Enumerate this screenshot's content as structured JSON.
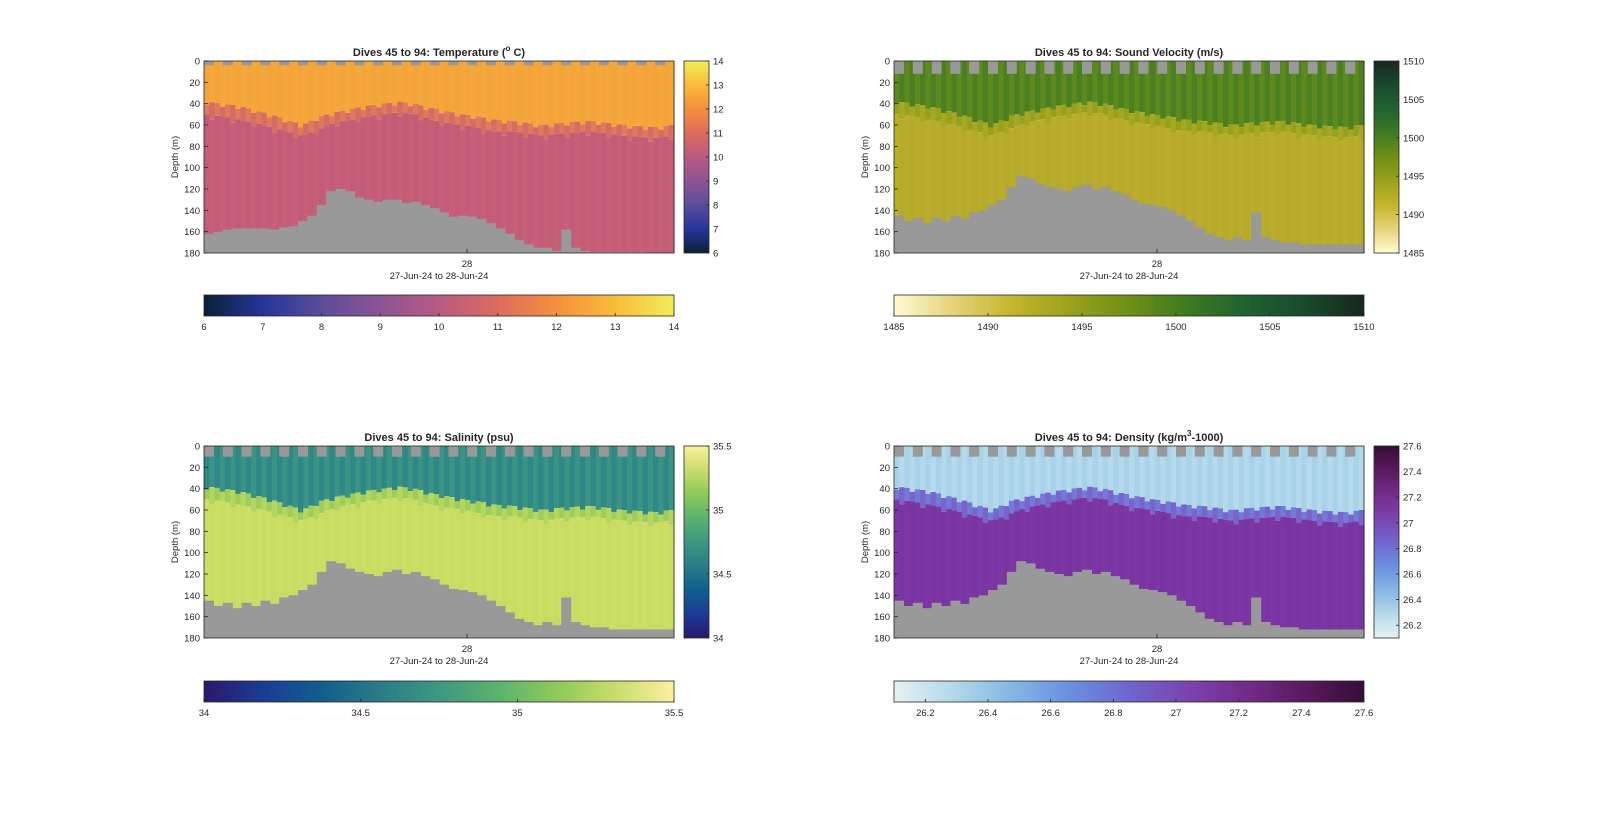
{
  "chart_data": [
    {
      "type": "heatmap",
      "title": "Dives 45 to 94: Temperature (° C)",
      "title_parts": [
        "Dives 45 to 94: Temperature (",
        "o",
        " C)"
      ],
      "ylabel": "Depth (m)",
      "xlabel": "27-Jun-24 to 28-Jun-24",
      "x_tick_labels": [
        "28"
      ],
      "ylim": [
        0,
        180
      ],
      "y_reversed": true,
      "y_ticks": [
        0,
        20,
        40,
        60,
        80,
        100,
        120,
        140,
        160,
        180
      ],
      "colormap": "thermal",
      "colormap_stops": [
        "#0a2235",
        "#26349a",
        "#5a4d9a",
        "#8d5494",
        "#b85a82",
        "#dd6c5e",
        "#f48f3d",
        "#f9bc3a",
        "#f2ec5a"
      ],
      "clim": [
        6,
        14
      ],
      "colorbar_ticks": [
        "6",
        "7",
        "8",
        "9",
        "10",
        "11",
        "12",
        "13",
        "14"
      ],
      "layers": [
        {
          "name": "mixed layer",
          "value": 12.8,
          "colors": [
            "#f5a43a",
            "#f4a83c"
          ]
        },
        {
          "name": "thermocline",
          "value": 11.0,
          "colors": [
            "#e07a58",
            "#d36d66"
          ]
        },
        {
          "name": "deep",
          "value": 10.4,
          "colors": [
            "#c25c78",
            "#c76077"
          ]
        }
      ],
      "mixed_layer_depth_m": [
        38,
        40,
        42,
        46,
        50,
        55,
        60,
        52,
        48,
        45,
        42,
        40,
        38,
        40,
        44,
        47,
        50,
        52,
        55,
        56,
        58,
        60,
        58,
        57,
        56,
        58,
        60,
        61,
        62,
        60
      ],
      "thermocline_base_m": [
        50,
        52,
        55,
        58,
        62,
        66,
        70,
        64,
        58,
        55,
        52,
        50,
        48,
        50,
        55,
        58,
        60,
        63,
        66,
        66,
        68,
        70,
        68,
        67,
        66,
        68,
        70,
        71,
        72,
        70
      ],
      "no_data_above_m": 4,
      "no_data_bottom_depth_m": [
        162,
        160,
        158,
        157,
        157,
        157,
        157,
        158,
        156,
        155,
        150,
        145,
        135,
        122,
        120,
        122,
        128,
        130,
        132,
        130,
        130,
        133,
        132,
        135,
        138,
        142,
        146,
        145,
        146,
        148,
        152,
        157,
        162,
        168,
        172,
        175,
        175,
        178,
        158,
        175,
        178,
        179,
        179,
        179,
        179,
        179,
        179,
        180,
        180,
        180
      ],
      "gap_color": "#999999"
    },
    {
      "type": "heatmap",
      "title": "Dives 45 to 94: Sound Velocity (m/s)",
      "ylabel": "Depth (m)",
      "xlabel": "27-Jun-24 to 28-Jun-24",
      "x_tick_labels": [
        "28"
      ],
      "ylim": [
        0,
        180
      ],
      "y_reversed": true,
      "y_ticks": [
        0,
        20,
        40,
        60,
        80,
        100,
        120,
        140,
        160,
        180
      ],
      "colormap": "speed",
      "colormap_stops": [
        "#fffcd4",
        "#e6d27a",
        "#c4b52c",
        "#9aa21a",
        "#6f8f17",
        "#3e7a20",
        "#1f6231",
        "#1a4a2e",
        "#17271c"
      ],
      "clim": [
        1485,
        1510
      ],
      "colorbar_ticks": [
        "1485",
        "1490",
        "1495",
        "1500",
        "1505",
        "1510"
      ],
      "layers": [
        {
          "name": "mixed layer",
          "value": 1499.5,
          "colors": [
            "#5d8a1c",
            "#4a8022"
          ]
        },
        {
          "name": "thermocline",
          "value": 1496.0,
          "colors": [
            "#95a31c",
            "#a9a623"
          ]
        },
        {
          "name": "deep",
          "value": 1493.5,
          "colors": [
            "#b9ad2c",
            "#b6aa2a"
          ]
        }
      ],
      "mixed_layer_depth_m": [
        38,
        40,
        42,
        46,
        50,
        55,
        60,
        52,
        48,
        45,
        42,
        40,
        38,
        40,
        44,
        47,
        50,
        52,
        55,
        56,
        58,
        60,
        58,
        57,
        56,
        58,
        60,
        61,
        62,
        60
      ],
      "thermocline_base_m": [
        50,
        52,
        55,
        58,
        62,
        66,
        70,
        64,
        58,
        55,
        52,
        50,
        48,
        50,
        55,
        58,
        60,
        63,
        66,
        66,
        68,
        70,
        68,
        67,
        66,
        68,
        70,
        71,
        72,
        70
      ],
      "no_data_above_m": 12,
      "no_data_bottom_depth_m": [
        145,
        150,
        147,
        152,
        147,
        150,
        145,
        148,
        142,
        140,
        135,
        130,
        118,
        108,
        110,
        115,
        118,
        120,
        122,
        118,
        116,
        120,
        118,
        122,
        125,
        130,
        134,
        135,
        137,
        140,
        145,
        150,
        156,
        162,
        165,
        168,
        165,
        168,
        142,
        165,
        168,
        170,
        170,
        172,
        172,
        172,
        172,
        172,
        172,
        172
      ],
      "gap_color": "#999999"
    },
    {
      "type": "heatmap",
      "title": "Dives 45 to 94: Salinity (psu)",
      "ylabel": "Depth (m)",
      "xlabel": "27-Jun-24 to 28-Jun-24",
      "x_tick_labels": [
        "28"
      ],
      "ylim": [
        0,
        180
      ],
      "y_reversed": true,
      "y_ticks": [
        0,
        20,
        40,
        60,
        80,
        100,
        120,
        140,
        160,
        180
      ],
      "colormap": "haline",
      "colormap_stops": [
        "#2a186c",
        "#1b3c96",
        "#115e8c",
        "#2b7c86",
        "#3e9781",
        "#5ab36c",
        "#8fc95a",
        "#c8dc6c",
        "#fdefa0"
      ],
      "clim": [
        34,
        35.5
      ],
      "colorbar_ticks": [
        "34",
        "34.5",
        "35",
        "35.5"
      ],
      "layers": [
        {
          "name": "mixed layer",
          "value": 34.8,
          "colors": [
            "#2f8786",
            "#3a9383"
          ]
        },
        {
          "name": "thermocline",
          "value": 35.2,
          "colors": [
            "#9fcd5c",
            "#b3d75e"
          ]
        },
        {
          "name": "deep",
          "value": 35.35,
          "colors": [
            "#cbdd64",
            "#c9dc62"
          ]
        }
      ],
      "mixed_layer_depth_m": [
        38,
        40,
        42,
        46,
        50,
        55,
        60,
        52,
        48,
        45,
        42,
        40,
        38,
        40,
        44,
        47,
        50,
        52,
        55,
        56,
        58,
        60,
        58,
        57,
        56,
        58,
        60,
        61,
        62,
        60
      ],
      "thermocline_base_m": [
        50,
        52,
        55,
        58,
        62,
        66,
        70,
        64,
        58,
        55,
        52,
        50,
        48,
        50,
        55,
        58,
        60,
        63,
        66,
        66,
        68,
        70,
        68,
        67,
        66,
        68,
        70,
        71,
        72,
        70
      ],
      "no_data_above_m": 10,
      "no_data_bottom_depth_m": [
        145,
        150,
        147,
        152,
        147,
        150,
        145,
        148,
        142,
        140,
        135,
        130,
        118,
        108,
        110,
        115,
        118,
        120,
        122,
        118,
        116,
        120,
        118,
        122,
        125,
        130,
        134,
        135,
        137,
        140,
        145,
        150,
        156,
        162,
        165,
        168,
        165,
        168,
        142,
        165,
        168,
        170,
        170,
        172,
        172,
        172,
        172,
        172,
        172,
        172
      ],
      "gap_color": "#999999"
    },
    {
      "type": "heatmap",
      "title": "Dives 45 to 94: Density (kg/m³-1000)",
      "title_parts": [
        "Dives 45 to 94: Density (kg/m",
        "3",
        "-1000)"
      ],
      "ylabel": "Depth (m)",
      "xlabel": "27-Jun-24 to 28-Jun-24",
      "x_tick_labels": [
        "28"
      ],
      "ylim": [
        0,
        180
      ],
      "y_reversed": true,
      "y_ticks": [
        0,
        20,
        40,
        60,
        80,
        100,
        120,
        140,
        160,
        180
      ],
      "colormap": "dense",
      "colormap_stops": [
        "#e6f1f1",
        "#b4d8ea",
        "#84b7e4",
        "#6a8fdf",
        "#7065cf",
        "#7b43b0",
        "#742b8a",
        "#5a1a5f",
        "#360d36"
      ],
      "clim": [
        26.1,
        27.6
      ],
      "colorbar_ticks": [
        "26.2",
        "26.4",
        "26.6",
        "26.8",
        "27",
        "27.2",
        "27.4",
        "27.6"
      ],
      "layers": [
        {
          "name": "mixed layer",
          "value": 26.3,
          "colors": [
            "#a7d2e8",
            "#b4d9ec"
          ]
        },
        {
          "name": "thermocline",
          "value": 26.8,
          "colors": [
            "#6f7bd8",
            "#7d62cc"
          ]
        },
        {
          "name": "deep",
          "value": 27.15,
          "colors": [
            "#7c36a6",
            "#7a35a2"
          ]
        }
      ],
      "mixed_layer_depth_m": [
        38,
        40,
        42,
        46,
        50,
        55,
        60,
        52,
        48,
        45,
        42,
        40,
        38,
        40,
        44,
        47,
        50,
        52,
        55,
        56,
        58,
        60,
        58,
        57,
        56,
        58,
        60,
        61,
        62,
        60
      ],
      "thermocline_base_m": [
        50,
        52,
        55,
        58,
        62,
        66,
        70,
        64,
        58,
        55,
        52,
        50,
        48,
        50,
        55,
        58,
        60,
        63,
        66,
        66,
        68,
        70,
        68,
        67,
        66,
        68,
        70,
        71,
        72,
        70
      ],
      "no_data_above_m": 10,
      "no_data_bottom_depth_m": [
        145,
        150,
        147,
        152,
        147,
        150,
        145,
        148,
        142,
        140,
        135,
        130,
        118,
        108,
        110,
        115,
        118,
        120,
        122,
        118,
        116,
        120,
        118,
        122,
        125,
        130,
        134,
        135,
        137,
        140,
        145,
        150,
        156,
        162,
        165,
        168,
        165,
        168,
        142,
        165,
        168,
        170,
        170,
        172,
        172,
        172,
        172,
        172,
        172,
        172
      ],
      "gap_color": "#999999"
    }
  ]
}
